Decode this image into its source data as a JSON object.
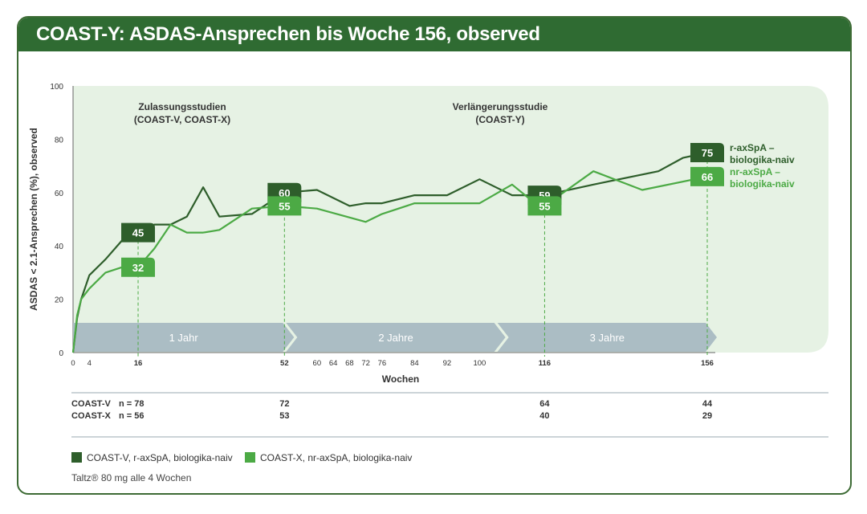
{
  "title": "COAST-Y: ASDAS-Ansprechen bis Woche 156, observed",
  "chart_data": {
    "type": "line",
    "title": "COAST-Y: ASDAS-Ansprechen bis Woche 156, observed",
    "xlabel": "Wochen",
    "ylabel": "ASDAS < 2.1-Ansprechen (%), observed",
    "ylim": [
      0,
      100
    ],
    "xlim": [
      0,
      156
    ],
    "y_ticks": [
      0,
      20,
      40,
      60,
      80,
      100
    ],
    "x_ticks": [
      0,
      4,
      16,
      52,
      60,
      64,
      68,
      72,
      76,
      84,
      92,
      100,
      116,
      156
    ],
    "x_ticks_bold": [
      16,
      52,
      116,
      156
    ],
    "grid": false,
    "legend_position": "bottom-left",
    "series": [
      {
        "name": "COAST-V, r-axSpA, biologika-naiv",
        "color": "#2e5e2b",
        "points": [
          [
            0,
            0
          ],
          [
            1,
            13
          ],
          [
            2,
            20
          ],
          [
            4,
            29
          ],
          [
            8,
            35
          ],
          [
            12,
            42
          ],
          [
            16,
            45
          ],
          [
            20,
            48
          ],
          [
            24,
            48
          ],
          [
            28,
            51
          ],
          [
            32,
            62
          ],
          [
            36,
            51
          ],
          [
            44,
            52
          ],
          [
            52,
            60
          ],
          [
            60,
            61
          ],
          [
            68,
            55
          ],
          [
            72,
            56
          ],
          [
            76,
            56
          ],
          [
            84,
            59
          ],
          [
            92,
            59
          ],
          [
            100,
            65
          ],
          [
            108,
            59
          ],
          [
            112,
            59
          ],
          [
            116,
            59
          ],
          [
            128,
            63
          ],
          [
            144,
            68
          ],
          [
            150,
            73
          ],
          [
            156,
            75
          ]
        ],
        "labels": [
          {
            "x": 16,
            "value": 45
          },
          {
            "x": 52,
            "value": 60
          },
          {
            "x": 116,
            "value": 59
          },
          {
            "x": 156,
            "value": 75
          }
        ],
        "end_label": [
          "r-axSpA –",
          "biologika-naiv"
        ]
      },
      {
        "name": "COAST-X, nr-axSpA, biologika-naiv",
        "color": "#4caa45",
        "points": [
          [
            0,
            0
          ],
          [
            1,
            14
          ],
          [
            2,
            20
          ],
          [
            4,
            24
          ],
          [
            8,
            30
          ],
          [
            12,
            32
          ],
          [
            16,
            32
          ],
          [
            20,
            39
          ],
          [
            24,
            48
          ],
          [
            28,
            45
          ],
          [
            32,
            45
          ],
          [
            36,
            46
          ],
          [
            44,
            54
          ],
          [
            52,
            55
          ],
          [
            60,
            54
          ],
          [
            72,
            49
          ],
          [
            76,
            52
          ],
          [
            84,
            56
          ],
          [
            92,
            56
          ],
          [
            100,
            56
          ],
          [
            108,
            63
          ],
          [
            112,
            58
          ],
          [
            116,
            55
          ],
          [
            128,
            68
          ],
          [
            140,
            61
          ],
          [
            156,
            66
          ]
        ],
        "labels": [
          {
            "x": 16,
            "value": 32
          },
          {
            "x": 52,
            "value": 55
          },
          {
            "x": 116,
            "value": 55
          },
          {
            "x": 156,
            "value": 66
          }
        ],
        "end_label": [
          "nr-axSpA –",
          "biologika-naiv"
        ]
      }
    ],
    "phases": [
      {
        "label": [
          "Zulassungsstudien",
          "(COAST-V, COAST-X)"
        ],
        "x": 16
      },
      {
        "label": [
          "Verlängerungsstudie",
          "(COAST-Y)"
        ],
        "x": 92
      }
    ],
    "period_arrows": [
      {
        "label": "1 Jahr",
        "from": 0,
        "to": 52
      },
      {
        "label": "2 Jahre",
        "from": 52,
        "to": 104
      },
      {
        "label": "3 Jahre",
        "from": 104,
        "to": 156
      }
    ],
    "n_table": {
      "rows": [
        {
          "study": "COAST-V",
          "first": "n = 78",
          "values": [
            {
              "x": 52,
              "n": "72"
            },
            {
              "x": 116,
              "n": "64"
            },
            {
              "x": 156,
              "n": "44"
            }
          ]
        },
        {
          "study": "COAST-X",
          "first": "n = 56",
          "values": [
            {
              "x": 52,
              "n": "53"
            },
            {
              "x": 116,
              "n": "40"
            },
            {
              "x": 156,
              "n": "29"
            }
          ]
        }
      ]
    }
  },
  "legend": [
    {
      "label": "COAST-V, r-axSpA, biologika-naiv",
      "color": "#2e5e2b"
    },
    {
      "label": "COAST-X, nr-axSpA, biologika-naiv",
      "color": "#4caa45"
    }
  ],
  "footnote": "Taltz® 80 mg alle 4 Wochen"
}
